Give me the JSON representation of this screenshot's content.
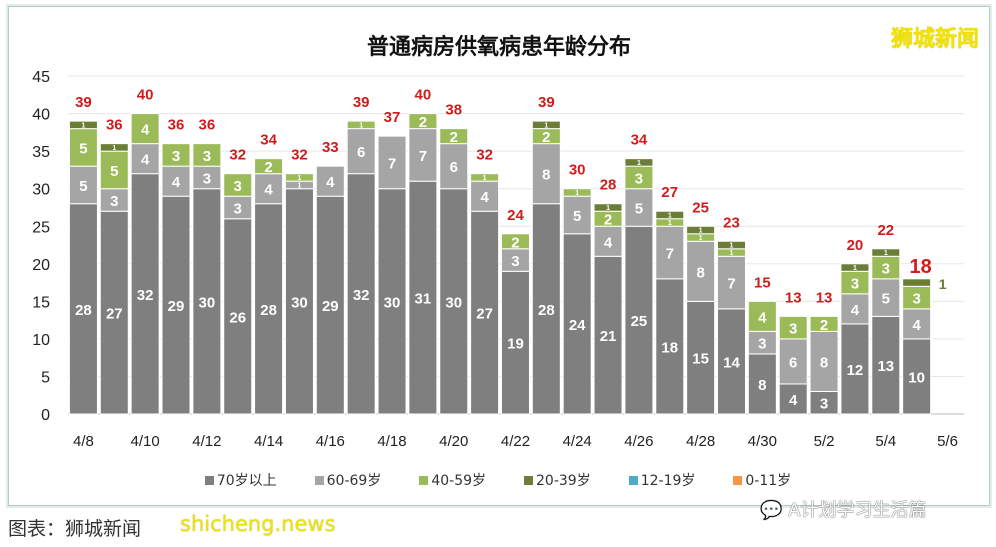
{
  "chart_data": {
    "type": "bar",
    "stacked": true,
    "title": "普通病房供氧病患年龄分布",
    "categories": [
      "4/8",
      "4/9",
      "4/10",
      "4/11",
      "4/12",
      "4/13",
      "4/14",
      "4/15",
      "4/16",
      "4/17",
      "4/18",
      "4/19",
      "4/20",
      "4/21",
      "4/22",
      "4/23",
      "4/24",
      "4/25",
      "4/26",
      "4/27",
      "4/28",
      "4/29",
      "4/30",
      "5/1",
      "5/2",
      "5/3",
      "5/4",
      "5/5",
      "5/6"
    ],
    "xtick_labels": [
      "4/8",
      "4/10",
      "4/12",
      "4/14",
      "4/16",
      "4/18",
      "4/20",
      "4/22",
      "4/24",
      "4/26",
      "4/28",
      "4/30",
      "5/2",
      "5/4",
      "5/6"
    ],
    "ylim": [
      0,
      45
    ],
    "yticks": [
      0,
      5,
      10,
      15,
      20,
      25,
      30,
      35,
      40,
      45
    ],
    "series": [
      {
        "name": "70岁以上",
        "color": "#7f7f7f",
        "values": [
          28,
          27,
          32,
          29,
          30,
          26,
          28,
          30,
          29,
          32,
          30,
          31,
          30,
          27,
          19,
          28,
          24,
          21,
          25,
          18,
          15,
          14,
          8,
          4,
          3,
          12,
          13,
          10,
          0
        ]
      },
      {
        "name": "60-69岁",
        "color": "#a5a5a5",
        "values": [
          5,
          3,
          4,
          4,
          3,
          3,
          4,
          1,
          4,
          6,
          7,
          7,
          6,
          4,
          3,
          8,
          5,
          4,
          5,
          7,
          8,
          7,
          3,
          6,
          8,
          4,
          5,
          4,
          0
        ]
      },
      {
        "name": "40-59岁",
        "color": "#9bbb59",
        "values": [
          5,
          5,
          4,
          3,
          3,
          3,
          2,
          1,
          0,
          1,
          0,
          2,
          2,
          1,
          2,
          2,
          1,
          2,
          3,
          1,
          1,
          1,
          4,
          3,
          2,
          3,
          3,
          3,
          0
        ]
      },
      {
        "name": "20-39岁",
        "color": "#6b7d37",
        "values": [
          1,
          1,
          0,
          0,
          0,
          0,
          0,
          0,
          0,
          0,
          0,
          0,
          0,
          0,
          0,
          1,
          0,
          1,
          1,
          1,
          1,
          1,
          0,
          0,
          0,
          1,
          1,
          1,
          0
        ]
      },
      {
        "name": "12-19岁",
        "color": "#4bacc6",
        "values": [
          0,
          0,
          0,
          0,
          0,
          0,
          0,
          0,
          0,
          0,
          0,
          0,
          0,
          0,
          0,
          0,
          0,
          0,
          0,
          0,
          0,
          0,
          0,
          0,
          0,
          0,
          0,
          0,
          0
        ]
      },
      {
        "name": "0-11岁",
        "color": "#f79646",
        "values": [
          0,
          0,
          0,
          0,
          0,
          0,
          0,
          0,
          0,
          0,
          0,
          0,
          0,
          0,
          0,
          0,
          0,
          0,
          0,
          0,
          0,
          0,
          0,
          0,
          0,
          0,
          0,
          0,
          0
        ]
      }
    ],
    "totals": [
      39,
      36,
      40,
      36,
      36,
      32,
      34,
      32,
      33,
      39,
      37,
      40,
      38,
      32,
      24,
      39,
      30,
      28,
      34,
      27,
      25,
      23,
      15,
      13,
      13,
      20,
      22,
      18,
      null
    ],
    "total_label_color": "#d01c1c",
    "legend_position": "bottom",
    "grid": true
  },
  "logo": "狮城新闻",
  "wechat_watermark": "A计划学习生活篇",
  "credit": "图表：狮城新闻",
  "credit_watermark": "shicheng.news"
}
